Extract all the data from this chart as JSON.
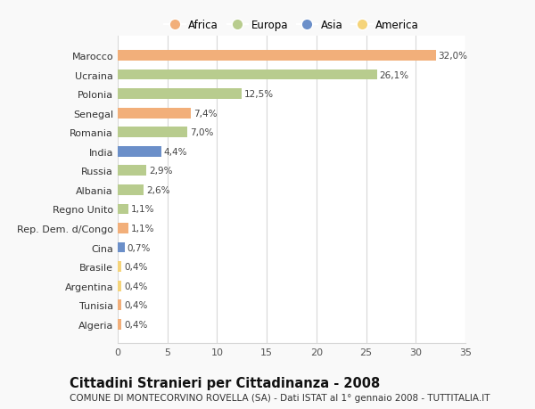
{
  "categories": [
    "Algeria",
    "Tunisia",
    "Argentina",
    "Brasile",
    "Cina",
    "Rep. Dem. d/Congo",
    "Regno Unito",
    "Albania",
    "Russia",
    "India",
    "Romania",
    "Senegal",
    "Polonia",
    "Ucraina",
    "Marocco"
  ],
  "values": [
    0.4,
    0.4,
    0.4,
    0.4,
    0.7,
    1.1,
    1.1,
    2.6,
    2.9,
    4.4,
    7.0,
    7.4,
    12.5,
    26.1,
    32.0
  ],
  "labels": [
    "0,4%",
    "0,4%",
    "0,4%",
    "0,4%",
    "0,7%",
    "1,1%",
    "1,1%",
    "2,6%",
    "2,9%",
    "4,4%",
    "7,0%",
    "7,4%",
    "12,5%",
    "26,1%",
    "32,0%"
  ],
  "continents": [
    "Africa",
    "Africa",
    "America",
    "America",
    "Asia",
    "Africa",
    "Europa",
    "Europa",
    "Europa",
    "Asia",
    "Europa",
    "Africa",
    "Europa",
    "Europa",
    "Africa"
  ],
  "colors": {
    "Africa": "#F2AF7A",
    "Europa": "#B8CC8E",
    "Asia": "#6B8FC9",
    "America": "#F5D47A"
  },
  "legend_order": [
    "Africa",
    "Europa",
    "Asia",
    "America"
  ],
  "title": "Cittadini Stranieri per Cittadinanza - 2008",
  "subtitle": "COMUNE DI MONTECORVINO ROVELLA (SA) - Dati ISTAT al 1° gennaio 2008 - TUTTITALIA.IT",
  "xlim": [
    0,
    35
  ],
  "xticks": [
    0,
    5,
    10,
    15,
    20,
    25,
    30,
    35
  ],
  "background_color": "#f9f9f9",
  "bar_background": "#ffffff",
  "grid_color": "#d8d8d8",
  "title_fontsize": 10.5,
  "subtitle_fontsize": 7.5,
  "label_fontsize": 7.5,
  "tick_fontsize": 8,
  "legend_fontsize": 8.5
}
